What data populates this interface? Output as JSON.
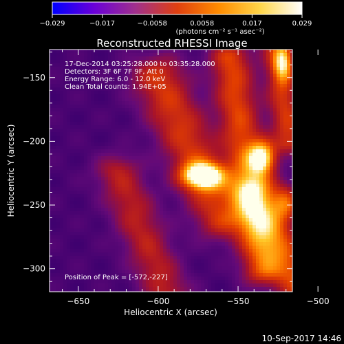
{
  "colorbar": {
    "ticks": [
      "−0.029",
      "−0.017",
      "−0.0058",
      "0.0058",
      "0.017",
      "0.029"
    ],
    "unit_label": "(photons cm⁻² s⁻¹ asec⁻²)",
    "colors": [
      "#0000ff",
      "#6a00d8",
      "#a0308c",
      "#e04010",
      "#ff8c00",
      "#ffd64a",
      "#ffffff"
    ]
  },
  "chart_data": {
    "type": "heatmap",
    "title": "Reconstructed RHESSI Image",
    "xlabel": "Heliocentric X (arcsec)",
    "ylabel": "Heliocentric Y (arcsec)",
    "xlim": [
      -668,
      -516
    ],
    "ylim": [
      -318,
      -128
    ],
    "xticks": [
      -650,
      -600,
      -550,
      -500
    ],
    "yticks": [
      -150,
      -200,
      -250,
      -300
    ],
    "xtick_labels": [
      "−650",
      "−600",
      "−550",
      "−500"
    ],
    "ytick_labels": [
      "−150",
      "−200",
      "−250",
      "−300"
    ],
    "annotations": [
      "17-Dec-2014 03:25:28.000 to 03:35:28.000",
      "Detectors: 3F 6F 7F 9F, Att 0",
      "Energy Range: 6.0 - 12.0 keV",
      "Clean     Total counts: 1.94E+05"
    ],
    "peak_label": "Position of Peak = [-572,-227]",
    "peak_position": [
      -572,
      -227
    ],
    "sources": [
      {
        "x": -572,
        "y": -227,
        "intensity": 1.0
      },
      {
        "x": -535,
        "y": -213,
        "intensity": 0.95
      },
      {
        "x": -520,
        "y": -248,
        "intensity": 0.75
      },
      {
        "x": -522,
        "y": -138,
        "intensity": 0.8
      }
    ]
  },
  "footer": {
    "timestamp": "10-Sep-2017 14:46"
  }
}
